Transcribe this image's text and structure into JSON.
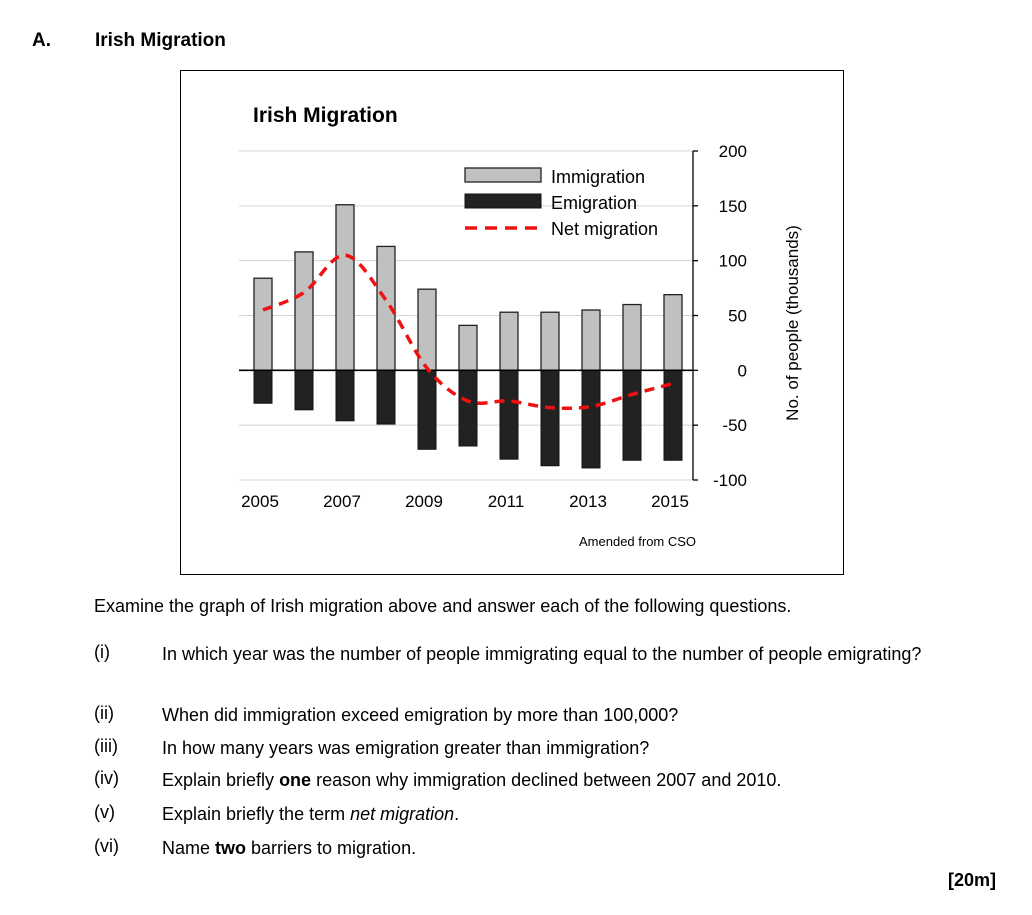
{
  "section": {
    "letter": "A.",
    "title": "Irish Migration"
  },
  "chart_data": {
    "type": "bar",
    "title": "Irish Migration",
    "ylabel": "No. of people (thousands)",
    "ylim": [
      -100,
      200
    ],
    "yticks": [
      200,
      150,
      100,
      50,
      0,
      -50,
      -100
    ],
    "x": [
      2005,
      2006,
      2007,
      2008,
      2009,
      2010,
      2011,
      2012,
      2013,
      2014,
      2015
    ],
    "xtick_labels": [
      "2005",
      "2007",
      "2009",
      "2011",
      "2013",
      "2015"
    ],
    "series": [
      {
        "name": "Immigration",
        "kind": "bar",
        "color": "#c0c0c0",
        "values": [
          84,
          108,
          151,
          113,
          74,
          41,
          53,
          53,
          55,
          60,
          69
        ]
      },
      {
        "name": "Emigration",
        "kind": "bar",
        "color": "#222222",
        "values": [
          -30,
          -36,
          -46,
          -49,
          -72,
          -69,
          -81,
          -87,
          -89,
          -82,
          -82
        ]
      },
      {
        "name": "Net migration",
        "kind": "line",
        "style": "dashed",
        "color": "#ee1111",
        "values": [
          55,
          71,
          105,
          64,
          2,
          -28,
          -28,
          -34,
          -33,
          -22,
          -12
        ]
      }
    ],
    "legend_position": "top-right",
    "grid": true,
    "source": "Amended from CSO"
  },
  "instructions": "Examine the graph of Irish migration above and answer each of the following questions.",
  "questions": [
    {
      "num": "(i)",
      "text": "In which year was the number of people immigrating equal to the number of people emigrating?"
    },
    {
      "num": "(ii)",
      "text": "When did immigration exceed emigration by more than 100,000?"
    },
    {
      "num": "(iii)",
      "text": "In how many years was emigration greater than immigration?"
    },
    {
      "num": "(iv)",
      "pre": "Explain briefly ",
      "bold": "one",
      "post": " reason why immigration declined between 2007 and 2010."
    },
    {
      "num": "(v)",
      "pre": "Explain briefly the term ",
      "italic": "net migration",
      "post": "."
    },
    {
      "num": "(vi)",
      "pre": "Name ",
      "bold": "two",
      "post": " barriers to migration."
    }
  ],
  "marks": "[20m]"
}
